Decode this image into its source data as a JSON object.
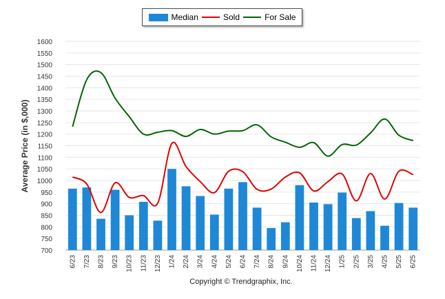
{
  "chart_data": {
    "type": "bar",
    "ylabel": "Average Price (in $,000)",
    "ylim": [
      700,
      1600
    ],
    "ytick_step": 50,
    "grid": true,
    "legend_position": "top-center",
    "categories": [
      "6/23",
      "7/23",
      "8/23",
      "9/23",
      "10/23",
      "11/23",
      "12/23",
      "1/24",
      "2/24",
      "3/24",
      "4/24",
      "5/24",
      "6/24",
      "7/24",
      "8/24",
      "9/24",
      "10/24",
      "11/24",
      "12/24",
      "1/25",
      "2/25",
      "3/25",
      "4/25",
      "5/25",
      "6/25"
    ],
    "series": [
      {
        "name": "Median",
        "kind": "bar",
        "color": "#1f88d6",
        "values": [
          965,
          970,
          835,
          960,
          850,
          908,
          827,
          1050,
          975,
          933,
          853,
          965,
          993,
          883,
          795,
          820,
          980,
          905,
          898,
          948,
          838,
          868,
          805,
          903,
          883
        ]
      },
      {
        "name": "Sold",
        "kind": "line",
        "color": "#e00000",
        "values": [
          1015,
          985,
          862,
          990,
          927,
          935,
          902,
          1160,
          1060,
          995,
          948,
          1040,
          1038,
          962,
          963,
          1015,
          1033,
          955,
          995,
          1028,
          912,
          1030,
          920,
          1040,
          1025
        ]
      },
      {
        "name": "For Sale",
        "kind": "line",
        "color": "#006400",
        "values": [
          1232,
          1435,
          1465,
          1355,
          1275,
          1200,
          1208,
          1215,
          1190,
          1220,
          1200,
          1213,
          1215,
          1240,
          1188,
          1165,
          1143,
          1163,
          1105,
          1155,
          1153,
          1205,
          1265,
          1195,
          1172
        ]
      }
    ]
  },
  "footer": "Copyright © Trendgraphix, Inc."
}
